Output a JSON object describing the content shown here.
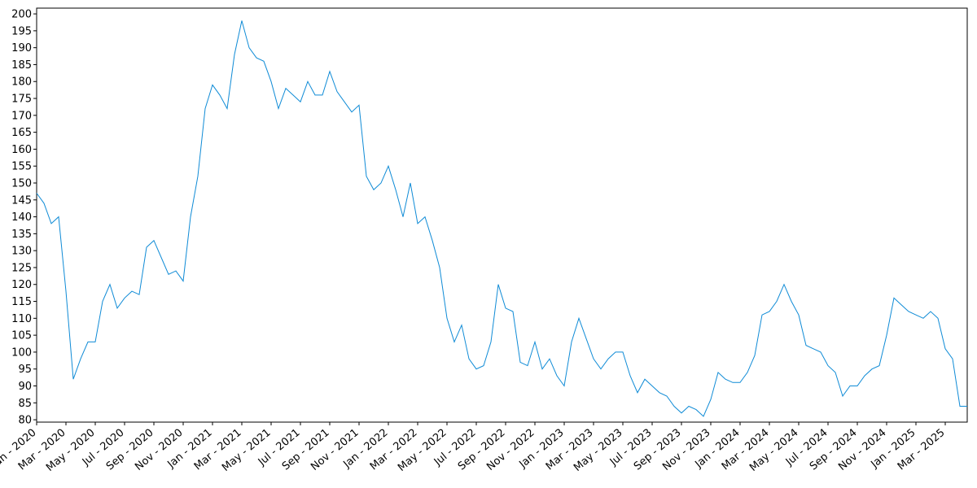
{
  "chart_data": {
    "type": "line",
    "categories": [
      "Jan - 2020",
      null,
      null,
      null,
      "Mar - 2020",
      null,
      null,
      null,
      "May - 2020",
      null,
      null,
      null,
      "Jul - 2020",
      null,
      null,
      null,
      "Sep - 2020",
      null,
      null,
      null,
      "Nov - 2020",
      null,
      null,
      null,
      "Jan - 2021",
      null,
      null,
      null,
      "Mar - 2021",
      null,
      null,
      null,
      "May - 2021",
      null,
      null,
      null,
      "Jul - 2021",
      null,
      null,
      null,
      "Sep - 2021",
      null,
      null,
      null,
      "Nov - 2021",
      null,
      null,
      null,
      "Jan - 2022",
      null,
      null,
      null,
      "Mar - 2022",
      null,
      null,
      null,
      "May - 2022",
      null,
      null,
      null,
      "Jul - 2022",
      null,
      null,
      null,
      "Sep - 2022",
      null,
      null,
      null,
      "Nov - 2022",
      null,
      null,
      null,
      "Jan - 2023",
      null,
      null,
      null,
      "Mar - 2023",
      null,
      null,
      null,
      "May - 2023",
      null,
      null,
      null,
      "Jul - 2023",
      null,
      null,
      null,
      "Sep - 2023",
      null,
      null,
      null,
      "Nov - 2023",
      null,
      null,
      null,
      "Jan - 2024",
      null,
      null,
      null,
      "Mar - 2024",
      null,
      null,
      null,
      "May - 2024",
      null,
      null,
      null,
      "Jul - 2024",
      null,
      null,
      null,
      "Sep - 2024",
      null,
      null,
      null,
      "Nov - 2024",
      null,
      null,
      null,
      "Jan - 2025",
      null,
      null,
      null,
      "Mar - 2025",
      null,
      null,
      null
    ],
    "values": [
      147,
      144,
      138,
      140,
      118,
      92,
      98,
      103,
      103,
      115,
      120,
      113,
      116,
      118,
      117,
      131,
      133,
      128,
      123,
      124,
      121,
      140,
      152,
      172,
      179,
      176,
      172,
      188,
      198,
      190,
      187,
      186,
      180,
      172,
      178,
      176,
      174,
      180,
      176,
      176,
      183,
      177,
      174,
      171,
      173,
      152,
      148,
      150,
      155,
      148,
      140,
      150,
      138,
      140,
      133,
      125,
      110,
      103,
      108,
      98,
      95,
      96,
      103,
      120,
      113,
      112,
      97,
      96,
      103,
      95,
      98,
      93,
      90,
      103,
      110,
      104,
      98,
      95,
      98,
      100,
      100,
      93,
      88,
      92,
      90,
      88,
      87,
      84,
      82,
      84,
      83,
      81,
      86,
      94,
      92,
      91,
      91,
      94,
      99,
      111,
      112,
      115,
      120,
      115,
      111,
      102,
      101,
      100,
      96,
      94,
      87,
      90,
      90,
      93,
      95,
      96,
      105,
      116,
      114,
      112,
      111,
      110,
      112,
      110,
      101,
      98,
      84,
      84
    ],
    "color": "#0f8bd6",
    "ylim": [
      79.3,
      201.7
    ],
    "yticks": [
      80,
      85,
      90,
      95,
      100,
      105,
      110,
      115,
      120,
      125,
      130,
      135,
      140,
      145,
      150,
      155,
      160,
      165,
      170,
      175,
      180,
      185,
      190,
      195,
      200
    ]
  }
}
